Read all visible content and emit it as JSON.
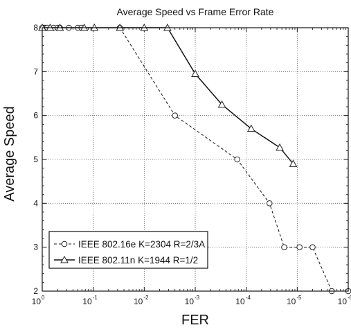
{
  "chart_data": {
    "type": "line",
    "title": "Average Speed vs Frame Error Rate",
    "xlabel": "FER",
    "ylabel": "Average Speed",
    "x_scale": "log-reversed",
    "xlim": [
      1,
      1e-06
    ],
    "ylim": [
      2,
      8
    ],
    "x_ticks": [
      {
        "value": 1,
        "base": "10",
        "exp": "0"
      },
      {
        "value": 0.1,
        "base": "10",
        "exp": "-1"
      },
      {
        "value": 0.01,
        "base": "10",
        "exp": "-2"
      },
      {
        "value": 0.001,
        "base": "10",
        "exp": "-3"
      },
      {
        "value": 0.0001,
        "base": "10",
        "exp": "-4"
      },
      {
        "value": 1e-05,
        "base": "10",
        "exp": "-5"
      },
      {
        "value": 1e-06,
        "base": "10",
        "exp": "-6"
      }
    ],
    "y_ticks": [
      "2",
      "3",
      "4",
      "5",
      "6",
      "7",
      "8"
    ],
    "grid": true,
    "legend_position": "bottom-left",
    "series": [
      {
        "name": "IEEE 802.16e K=2304 R=2/3A",
        "marker": "circle",
        "line": "dashed",
        "x": [
          1.0,
          0.95,
          0.9,
          0.85,
          0.8,
          0.6,
          0.5,
          0.45,
          0.3,
          0.2,
          0.17,
          0.03,
          0.0025,
          0.00015,
          3.5e-05,
          1.8e-05,
          9e-06,
          5e-06,
          2.1e-06,
          1e-06
        ],
        "y": [
          8,
          8,
          8,
          8,
          8,
          8,
          8,
          8,
          8,
          8,
          8,
          8,
          6,
          5,
          4,
          3,
          3,
          3,
          2,
          2
        ]
      },
      {
        "name": "IEEE 802.11n K=1944 R=1/2",
        "marker": "triangle",
        "line": "solid",
        "x": [
          1.0,
          0.7,
          0.45,
          0.15,
          0.095,
          0.03,
          0.01,
          0.0035,
          0.001,
          0.0003,
          8e-05,
          2.2e-05,
          1.2e-05
        ],
        "y": [
          8,
          8,
          8,
          8,
          8,
          8,
          8,
          8,
          6.95,
          6.25,
          5.7,
          5.27,
          4.9
        ]
      }
    ]
  }
}
